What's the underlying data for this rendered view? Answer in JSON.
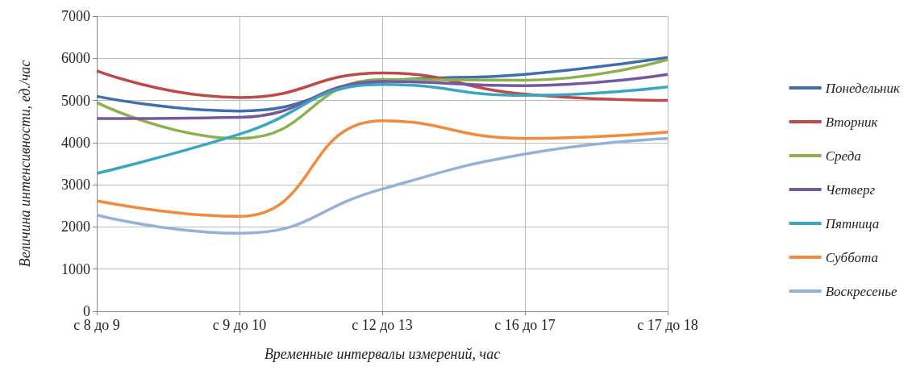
{
  "chart_data": {
    "type": "line",
    "xlabel": "Временные интервалы измерений, час",
    "ylabel": "Величина интенсивности, ед./час",
    "categories": [
      "с 8 до 9",
      "с 9 до 10",
      "с 12 до 13",
      "с 16 до 17",
      "с 17 до 18"
    ],
    "ylim": [
      0,
      7000
    ],
    "yticks": [
      0,
      1000,
      2000,
      3000,
      4000,
      5000,
      6000,
      7000
    ],
    "grid": true,
    "legend": "right",
    "marker": "none",
    "line_style": "solid",
    "series": [
      {
        "name": "Понедельник",
        "color": "#3f6fae",
        "values": [
          5100,
          4750,
          5450,
          5620,
          6020
        ]
      },
      {
        "name": "Вторник",
        "color": "#be4b48",
        "values": [
          5700,
          5070,
          5650,
          5150,
          5000
        ]
      },
      {
        "name": "Среда",
        "color": "#8db04d",
        "values": [
          4950,
          4100,
          5500,
          5480,
          5970
        ]
      },
      {
        "name": "Четверг",
        "color": "#7558a0",
        "values": [
          4570,
          4600,
          5450,
          5350,
          5620
        ]
      },
      {
        "name": "Пятница",
        "color": "#3ba6c0",
        "values": [
          3270,
          4200,
          5380,
          5120,
          5320
        ]
      },
      {
        "name": "Суббота",
        "color": "#f38a3a",
        "values": [
          2620,
          2250,
          4520,
          4100,
          4250
        ]
      },
      {
        "name": "Воскресенье",
        "color": "#93b1d9",
        "values": [
          2280,
          1850,
          2900,
          3730,
          4100
        ]
      }
    ]
  }
}
